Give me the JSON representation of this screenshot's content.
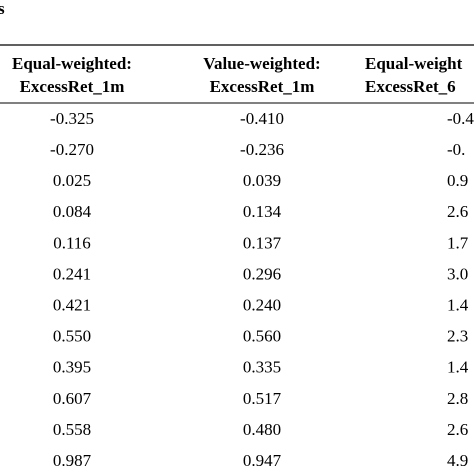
{
  "title": "s",
  "table": {
    "header": [
      [
        "Equal-weighted:",
        "ExcessRet_1m"
      ],
      [
        "Value-weighted:",
        "ExcessRet_1m"
      ],
      [
        "Equal-weight",
        "ExcessRet_6"
      ]
    ],
    "rows": [
      [
        "-0.325",
        "-0.410",
        "-0.4"
      ],
      [
        "-0.270",
        "-0.236",
        "-0."
      ],
      [
        "0.025",
        "0.039",
        "0.9"
      ],
      [
        "0.084",
        "0.134",
        "2.6"
      ],
      [
        "0.116",
        "0.137",
        "1.7"
      ],
      [
        "0.241",
        "0.296",
        "3.0"
      ],
      [
        "0.421",
        "0.240",
        "1.4"
      ],
      [
        "0.550",
        "0.560",
        "2.3"
      ],
      [
        "0.395",
        "0.335",
        "1.4"
      ],
      [
        "0.607",
        "0.517",
        "2.8"
      ],
      [
        "0.558",
        "0.480",
        "2.6"
      ],
      [
        "0.987",
        "0.947",
        "4.9"
      ]
    ]
  }
}
